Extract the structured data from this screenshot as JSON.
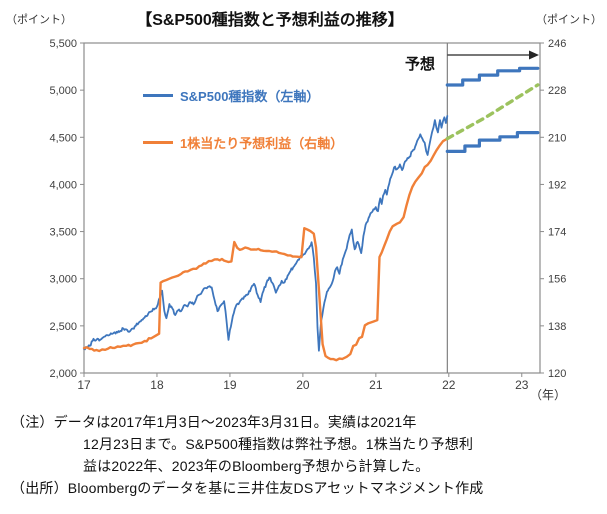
{
  "legend": [
    {
      "label": "S&P500種指数（左軸）",
      "color": "#3E76BD"
    },
    {
      "label": "1株当たり予想利益（右軸）",
      "color": "#F08038"
    }
  ],
  "notes": [
    "（注）データは2017年1月3日～2023年3月31日。実績は2021年",
    "12月23日まで。S&P500種指数は弊社予想。1株当たり予想利",
    "益は2022年、2023年のBloomberg予想から計算した。",
    "（出所）Bloombergのデータを基に三井住友DSアセットマネジメント作成"
  ],
  "chart_data": {
    "type": "line",
    "title": "【S&P500種指数と予想利益の推移】",
    "x_range": [
      2017,
      2023.25
    ],
    "x_axis": {
      "unit": "（年）",
      "tick_labels": [
        "17",
        "18",
        "19",
        "20",
        "21",
        "22",
        "23"
      ],
      "tick_values": [
        2017,
        2018,
        2019,
        2020,
        2021,
        2022,
        2023
      ]
    },
    "left_axis": {
      "unit": "（ポイント）",
      "min": 2000,
      "max": 5500,
      "tick_labels": [
        "5,500",
        "5,000",
        "4,500",
        "4,000",
        "3,500",
        "3,000",
        "2,500",
        "2,000"
      ],
      "tick_values": [
        5500,
        5000,
        4500,
        4000,
        3500,
        3000,
        2500,
        2000
      ]
    },
    "right_axis": {
      "unit": "（ポイント）",
      "min": 120,
      "max": 246,
      "tick_labels": [
        "246",
        "228",
        "210",
        "192",
        "174",
        "156",
        "138",
        "120"
      ],
      "tick_values": [
        246,
        228,
        210,
        192,
        174,
        156,
        138,
        120
      ]
    },
    "forecast": {
      "label": "予想",
      "start": 2021.98,
      "end": 2023.22
    },
    "grid": false,
    "series": [
      {
        "id": "sp500-actual",
        "name": "S&P500種指数（左軸）",
        "axis": "left",
        "style": "jagged",
        "color": "#3E76BD",
        "width": 1.8,
        "points": [
          [
            2017.0,
            2255
          ],
          [
            2017.04,
            2268
          ],
          [
            2017.08,
            2288
          ],
          [
            2017.13,
            2363
          ],
          [
            2017.17,
            2352
          ],
          [
            2017.21,
            2344
          ],
          [
            2017.25,
            2370
          ],
          [
            2017.29,
            2388
          ],
          [
            2017.33,
            2398
          ],
          [
            2017.38,
            2415
          ],
          [
            2017.42,
            2432
          ],
          [
            2017.46,
            2428
          ],
          [
            2017.5,
            2446
          ],
          [
            2017.54,
            2472
          ],
          [
            2017.58,
            2462
          ],
          [
            2017.63,
            2442
          ],
          [
            2017.67,
            2472
          ],
          [
            2017.71,
            2502
          ],
          [
            2017.75,
            2532
          ],
          [
            2017.79,
            2562
          ],
          [
            2017.83,
            2588
          ],
          [
            2017.88,
            2628
          ],
          [
            2017.92,
            2652
          ],
          [
            2017.96,
            2674
          ],
          [
            2018.0,
            2705
          ],
          [
            2018.04,
            2800
          ],
          [
            2018.07,
            2873
          ],
          [
            2018.1,
            2660
          ],
          [
            2018.13,
            2581
          ],
          [
            2018.17,
            2732
          ],
          [
            2018.21,
            2685
          ],
          [
            2018.25,
            2615
          ],
          [
            2018.29,
            2665
          ],
          [
            2018.33,
            2655
          ],
          [
            2018.38,
            2722
          ],
          [
            2018.42,
            2705
          ],
          [
            2018.46,
            2752
          ],
          [
            2018.5,
            2728
          ],
          [
            2018.54,
            2792
          ],
          [
            2018.58,
            2832
          ],
          [
            2018.63,
            2878
          ],
          [
            2018.67,
            2902
          ],
          [
            2018.71,
            2916
          ],
          [
            2018.75,
            2908
          ],
          [
            2018.79,
            2772
          ],
          [
            2018.83,
            2655
          ],
          [
            2018.88,
            2722
          ],
          [
            2018.92,
            2762
          ],
          [
            2018.94,
            2655
          ],
          [
            2018.98,
            2351
          ],
          [
            2019.0,
            2455
          ],
          [
            2019.04,
            2602
          ],
          [
            2019.08,
            2706
          ],
          [
            2019.13,
            2748
          ],
          [
            2019.17,
            2792
          ],
          [
            2019.21,
            2812
          ],
          [
            2019.25,
            2836
          ],
          [
            2019.29,
            2902
          ],
          [
            2019.33,
            2946
          ],
          [
            2019.38,
            2828
          ],
          [
            2019.42,
            2752
          ],
          [
            2019.46,
            2872
          ],
          [
            2019.5,
            2952
          ],
          [
            2019.54,
            3012
          ],
          [
            2019.58,
            2958
          ],
          [
            2019.63,
            2852
          ],
          [
            2019.67,
            2922
          ],
          [
            2019.71,
            2978
          ],
          [
            2019.75,
            2962
          ],
          [
            2019.79,
            3032
          ],
          [
            2019.83,
            3082
          ],
          [
            2019.88,
            3132
          ],
          [
            2019.92,
            3182
          ],
          [
            2019.96,
            3232
          ],
          [
            2020.0,
            3252
          ],
          [
            2020.04,
            3282
          ],
          [
            2020.08,
            3322
          ],
          [
            2020.12,
            3386
          ],
          [
            2020.15,
            3222
          ],
          [
            2020.18,
            2952
          ],
          [
            2020.2,
            2482
          ],
          [
            2020.22,
            2237
          ],
          [
            2020.25,
            2552
          ],
          [
            2020.28,
            2682
          ],
          [
            2020.31,
            2792
          ],
          [
            2020.33,
            2862
          ],
          [
            2020.38,
            2922
          ],
          [
            2020.42,
            3002
          ],
          [
            2020.44,
            3082
          ],
          [
            2020.47,
            3122
          ],
          [
            2020.5,
            3052
          ],
          [
            2020.52,
            3132
          ],
          [
            2020.56,
            3232
          ],
          [
            2020.6,
            3322
          ],
          [
            2020.64,
            3462
          ],
          [
            2020.67,
            3522
          ],
          [
            2020.69,
            3402
          ],
          [
            2020.71,
            3312
          ],
          [
            2020.75,
            3392
          ],
          [
            2020.78,
            3322
          ],
          [
            2020.8,
            3272
          ],
          [
            2020.83,
            3452
          ],
          [
            2020.86,
            3572
          ],
          [
            2020.9,
            3642
          ],
          [
            2020.94,
            3702
          ],
          [
            2020.98,
            3735
          ],
          [
            2021.0,
            3760
          ],
          [
            2021.03,
            3716
          ],
          [
            2021.06,
            3852
          ],
          [
            2021.08,
            3792
          ],
          [
            2021.1,
            3882
          ],
          [
            2021.13,
            3942
          ],
          [
            2021.15,
            3892
          ],
          [
            2021.17,
            3972
          ],
          [
            2021.21,
            4082
          ],
          [
            2021.25,
            4182
          ],
          [
            2021.29,
            4162
          ],
          [
            2021.33,
            4212
          ],
          [
            2021.36,
            4152
          ],
          [
            2021.4,
            4242
          ],
          [
            2021.42,
            4256
          ],
          [
            2021.46,
            4292
          ],
          [
            2021.5,
            4352
          ],
          [
            2021.54,
            4402
          ],
          [
            2021.58,
            4482
          ],
          [
            2021.61,
            4532
          ],
          [
            2021.65,
            4462
          ],
          [
            2021.67,
            4442
          ],
          [
            2021.69,
            4352
          ],
          [
            2021.71,
            4312
          ],
          [
            2021.73,
            4402
          ],
          [
            2021.75,
            4482
          ],
          [
            2021.77,
            4552
          ],
          [
            2021.79,
            4606
          ],
          [
            2021.81,
            4682
          ],
          [
            2021.83,
            4602
          ],
          [
            2021.85,
            4552
          ],
          [
            2021.88,
            4682
          ],
          [
            2021.9,
            4602
          ],
          [
            2021.92,
            4672
          ],
          [
            2021.94,
            4712
          ],
          [
            2021.96,
            4652
          ],
          [
            2021.98,
            4726
          ]
        ]
      },
      {
        "id": "eps-actual",
        "name": "1株当たり予想利益（右軸）",
        "axis": "right",
        "style": "jagged",
        "color": "#F08038",
        "width": 2.4,
        "points": [
          [
            2017.0,
            129.5
          ],
          [
            2017.08,
            129.2
          ],
          [
            2017.17,
            128.8
          ],
          [
            2017.25,
            129.0
          ],
          [
            2017.33,
            129.3
          ],
          [
            2017.42,
            129.6
          ],
          [
            2017.5,
            130.0
          ],
          [
            2017.58,
            130.4
          ],
          [
            2017.67,
            130.8
          ],
          [
            2017.75,
            131.4
          ],
          [
            2017.83,
            132.2
          ],
          [
            2017.92,
            133.2
          ],
          [
            2017.98,
            134.2
          ],
          [
            2018.03,
            135.0
          ],
          [
            2018.05,
            154.5
          ],
          [
            2018.08,
            155.0
          ],
          [
            2018.13,
            155.5
          ],
          [
            2018.17,
            156.0
          ],
          [
            2018.25,
            156.8
          ],
          [
            2018.33,
            157.8
          ],
          [
            2018.42,
            158.8
          ],
          [
            2018.5,
            159.8
          ],
          [
            2018.58,
            160.8
          ],
          [
            2018.67,
            161.8
          ],
          [
            2018.75,
            162.8
          ],
          [
            2018.83,
            163.4
          ],
          [
            2018.92,
            162.9
          ],
          [
            2018.98,
            162.4
          ],
          [
            2019.02,
            162.6
          ],
          [
            2019.06,
            170.0
          ],
          [
            2019.1,
            167.8
          ],
          [
            2019.17,
            167.3
          ],
          [
            2019.25,
            167.6
          ],
          [
            2019.33,
            167.2
          ],
          [
            2019.42,
            166.9
          ],
          [
            2019.5,
            166.6
          ],
          [
            2019.58,
            166.3
          ],
          [
            2019.67,
            165.9
          ],
          [
            2019.75,
            165.4
          ],
          [
            2019.83,
            164.9
          ],
          [
            2019.92,
            164.4
          ],
          [
            2019.98,
            164.2
          ],
          [
            2020.02,
            175.3
          ],
          [
            2020.06,
            174.8
          ],
          [
            2020.1,
            174.2
          ],
          [
            2020.15,
            173.2
          ],
          [
            2020.18,
            168.0
          ],
          [
            2020.22,
            152.0
          ],
          [
            2020.27,
            131.0
          ],
          [
            2020.31,
            126.5
          ],
          [
            2020.38,
            125.3
          ],
          [
            2020.46,
            124.9
          ],
          [
            2020.54,
            125.4
          ],
          [
            2020.6,
            126.2
          ],
          [
            2020.65,
            127.2
          ],
          [
            2020.69,
            130.3
          ],
          [
            2020.73,
            130.8
          ],
          [
            2020.77,
            133.3
          ],
          [
            2020.81,
            133.8
          ],
          [
            2020.85,
            138.2
          ],
          [
            2020.9,
            139.0
          ],
          [
            2020.96,
            139.6
          ],
          [
            2021.02,
            140.2
          ],
          [
            2021.05,
            164.3
          ],
          [
            2021.08,
            166.0
          ],
          [
            2021.12,
            168.9
          ],
          [
            2021.15,
            171.0
          ],
          [
            2021.19,
            174.0
          ],
          [
            2021.23,
            176.0
          ],
          [
            2021.29,
            177.0
          ],
          [
            2021.33,
            177.5
          ],
          [
            2021.38,
            179.5
          ],
          [
            2021.42,
            184.0
          ],
          [
            2021.46,
            188.0
          ],
          [
            2021.5,
            191.0
          ],
          [
            2021.54,
            193.0
          ],
          [
            2021.58,
            194.5
          ],
          [
            2021.63,
            196.2
          ],
          [
            2021.67,
            198.6
          ],
          [
            2021.71,
            199.5
          ],
          [
            2021.75,
            201.0
          ],
          [
            2021.79,
            203.0
          ],
          [
            2021.83,
            205.0
          ],
          [
            2021.88,
            207.0
          ],
          [
            2021.92,
            208.5
          ],
          [
            2021.98,
            209.5
          ]
        ]
      },
      {
        "id": "sp500-forecast-upper",
        "name": "S&P500予想レンジ上限",
        "axis": "left",
        "style": "step",
        "color": "#3E76BD",
        "width": 3.2,
        "end": 2023.22,
        "levels": [
          [
            2021.98,
            5055
          ],
          [
            2022.19,
            5108
          ],
          [
            2022.42,
            5160
          ],
          [
            2022.67,
            5205
          ],
          [
            2022.97,
            5232
          ]
        ]
      },
      {
        "id": "sp500-forecast-lower",
        "name": "S&P500予想レンジ下限",
        "axis": "left",
        "style": "step",
        "color": "#3E76BD",
        "width": 3.2,
        "end": 2023.22,
        "levels": [
          [
            2021.98,
            4350
          ],
          [
            2022.22,
            4408
          ],
          [
            2022.42,
            4470
          ],
          [
            2022.7,
            4505
          ],
          [
            2022.94,
            4550
          ]
        ]
      },
      {
        "id": "eps-forecast",
        "name": "1株当たり予想利益（予想）",
        "axis": "right",
        "style": "dashed",
        "color": "#9CC25E",
        "width": 3.4,
        "dash": "6 5.5",
        "points": [
          [
            2021.98,
            209.5
          ],
          [
            2022.5,
            217.5
          ],
          [
            2023.22,
            230.0
          ]
        ]
      }
    ]
  }
}
